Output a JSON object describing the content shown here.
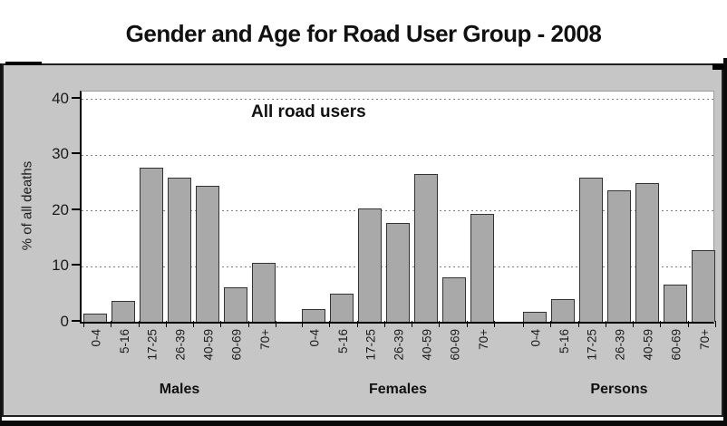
{
  "chart_data": {
    "type": "bar",
    "title": "Gender and Age for Road User Group - 2008",
    "annotation": "All road users",
    "ylabel": "% of all deaths",
    "xlabel": "",
    "ylim": [
      0,
      40
    ],
    "yticks": [
      0,
      10,
      20,
      30,
      40
    ],
    "grid": "horizontal-dashed",
    "legend": "none",
    "categories": [
      "0-4",
      "5-16",
      "17-25",
      "26-39",
      "40-59",
      "60-69",
      "70+"
    ],
    "groups": [
      {
        "name": "Males",
        "values": [
          1.5,
          3.7,
          27.7,
          25.8,
          24.4,
          6.2,
          10.6
        ]
      },
      {
        "name": "Females",
        "values": [
          2.3,
          5.0,
          20.3,
          17.7,
          26.5,
          7.9,
          19.4
        ]
      },
      {
        "name": "Persons",
        "values": [
          1.8,
          4.1,
          25.8,
          23.6,
          24.9,
          6.6,
          12.9
        ]
      }
    ],
    "colors": {
      "bar_fill": "#a9a9a9",
      "bar_border": "#333333",
      "chart_bg": "#c6c6c6",
      "plot_bg": "#ffffff",
      "gridline": "#808080"
    }
  }
}
